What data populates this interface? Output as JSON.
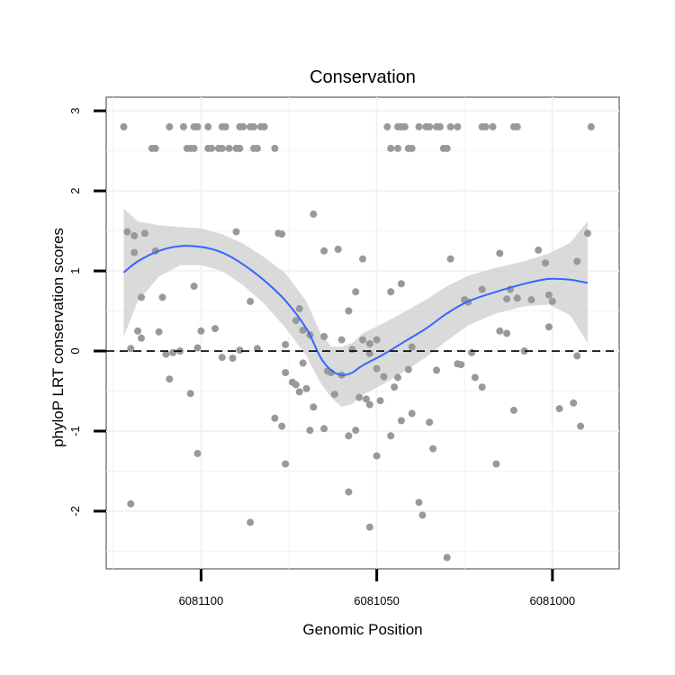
{
  "chart_data": {
    "type": "scatter",
    "title": "Conservation",
    "xlabel": "Genomic Position",
    "ylabel": "phyloP LRT conservation scores",
    "x_reversed": true,
    "xlim": [
      6081127,
      6080981
    ],
    "ylim": [
      -2.72,
      3.17
    ],
    "x_ticks": [
      6081100,
      6081050,
      6081000
    ],
    "x_tick_labels": [
      "6081100",
      "6081050",
      "6081000"
    ],
    "y_ticks": [
      -2,
      -1,
      0,
      1,
      2,
      3
    ],
    "y_tick_labels": [
      "-2",
      "-1",
      "0",
      "1",
      "2",
      "3"
    ],
    "grid": true,
    "reference_line": {
      "y": 0,
      "style": "dashed",
      "color": "#000000"
    },
    "colors": {
      "points": "#999999",
      "smooth": "#3366ff",
      "ribbon": "#d3d3d3",
      "panel_border": "#7f7f7f",
      "grid": "#f2f2f2"
    },
    "points": [
      [
        6081122,
        2.8
      ],
      [
        6081109,
        2.8
      ],
      [
        6081105,
        2.8
      ],
      [
        6081102,
        2.8
      ],
      [
        6081101,
        2.8
      ],
      [
        6081098,
        2.8
      ],
      [
        6081094,
        2.8
      ],
      [
        6081093,
        2.8
      ],
      [
        6081089,
        2.8
      ],
      [
        6081088,
        2.8
      ],
      [
        6081086,
        2.8
      ],
      [
        6081085,
        2.8
      ],
      [
        6081083,
        2.8
      ],
      [
        6081082,
        2.8
      ],
      [
        6081047,
        2.8
      ],
      [
        6081044,
        2.8
      ],
      [
        6081043,
        2.8
      ],
      [
        6081042,
        2.8
      ],
      [
        6081038,
        2.8
      ],
      [
        6081036,
        2.8
      ],
      [
        6081035,
        2.8
      ],
      [
        6081033,
        2.8
      ],
      [
        6081032,
        2.8
      ],
      [
        6081029,
        2.8
      ],
      [
        6081027,
        2.8
      ],
      [
        6081020,
        2.8
      ],
      [
        6081019,
        2.8
      ],
      [
        6081017,
        2.8
      ],
      [
        6081011,
        2.8
      ],
      [
        6081010,
        2.8
      ],
      [
        6080989,
        2.8
      ],
      [
        6081114,
        2.53
      ],
      [
        6081113,
        2.53
      ],
      [
        6081104,
        2.53
      ],
      [
        6081103,
        2.53
      ],
      [
        6081102,
        2.53
      ],
      [
        6081098,
        2.53
      ],
      [
        6081097,
        2.53
      ],
      [
        6081095,
        2.53
      ],
      [
        6081094,
        2.53
      ],
      [
        6081092,
        2.53
      ],
      [
        6081090,
        2.53
      ],
      [
        6081089,
        2.53
      ],
      [
        6081085,
        2.53
      ],
      [
        6081084,
        2.53
      ],
      [
        6081079,
        2.53
      ],
      [
        6081046,
        2.53
      ],
      [
        6081044,
        2.53
      ],
      [
        6081041,
        2.53
      ],
      [
        6081040,
        2.53
      ],
      [
        6081031,
        2.53
      ],
      [
        6081030,
        2.53
      ],
      [
        6081121,
        1.49
      ],
      [
        6081116,
        1.47
      ],
      [
        6081119,
        1.44
      ],
      [
        6081090,
        1.49
      ],
      [
        6081078,
        1.47
      ],
      [
        6081077,
        1.46
      ],
      [
        6081068,
        1.71
      ],
      [
        6081061,
        1.27
      ],
      [
        6081065,
        1.25
      ],
      [
        6081113,
        1.25
      ],
      [
        6081119,
        1.23
      ],
      [
        6081054,
        1.15
      ],
      [
        6081029,
        1.15
      ],
      [
        6081015,
        1.22
      ],
      [
        6081004,
        1.26
      ],
      [
        6080990,
        1.47
      ],
      [
        6081002,
        1.1
      ],
      [
        6080993,
        1.12
      ],
      [
        6081043,
        0.84
      ],
      [
        6081020,
        0.77
      ],
      [
        6081102,
        0.81
      ],
      [
        6081046,
        0.74
      ],
      [
        6081012,
        0.77
      ],
      [
        6081056,
        0.74
      ],
      [
        6081117,
        0.67
      ],
      [
        6081111,
        0.67
      ],
      [
        6081086,
        0.62
      ],
      [
        6081072,
        0.53
      ],
      [
        6081058,
        0.5
      ],
      [
        6081025,
        0.64
      ],
      [
        6081024,
        0.61
      ],
      [
        6081006,
        0.64
      ],
      [
        6081010,
        0.66
      ],
      [
        6081013,
        0.65
      ],
      [
        6081001,
        0.7
      ],
      [
        6081000,
        0.62
      ],
      [
        6081120,
        0.03
      ],
      [
        6081118,
        0.25
      ],
      [
        6081117,
        0.16
      ],
      [
        6081112,
        0.24
      ],
      [
        6081100,
        0.25
      ],
      [
        6081096,
        0.28
      ],
      [
        6081073,
        0.38
      ],
      [
        6081071,
        0.26
      ],
      [
        6081065,
        0.18
      ],
      [
        6081050,
        0.14
      ],
      [
        6081052,
        0.09
      ],
      [
        6081054,
        0.14
      ],
      [
        6081060,
        0.14
      ],
      [
        6081057,
        0.02
      ],
      [
        6081052,
        -0.03
      ],
      [
        6081040,
        0.05
      ],
      [
        6081023,
        -0.02
      ],
      [
        6081015,
        0.25
      ],
      [
        6081013,
        0.22
      ],
      [
        6081008,
        0.0
      ],
      [
        6081001,
        0.3
      ],
      [
        6080993,
        -0.06
      ],
      [
        6081076,
        0.08
      ],
      [
        6081110,
        -0.04
      ],
      [
        6081108,
        -0.02
      ],
      [
        6081106,
        0.0
      ],
      [
        6081101,
        0.04
      ],
      [
        6081094,
        -0.08
      ],
      [
        6081089,
        0.01
      ],
      [
        6081084,
        0.03
      ],
      [
        6081069,
        0.2
      ],
      [
        6081071,
        -0.15
      ],
      [
        6081064,
        -0.25
      ],
      [
        6081063,
        -0.27
      ],
      [
        6081060,
        -0.3
      ],
      [
        6081048,
        -0.32
      ],
      [
        6081044,
        -0.33
      ],
      [
        6081050,
        -0.22
      ],
      [
        6081026,
        -0.17
      ],
      [
        6081022,
        -0.33
      ],
      [
        6081033,
        -0.24
      ],
      [
        6081041,
        -0.23
      ],
      [
        6081027,
        -0.16
      ],
      [
        6081109,
        -0.35
      ],
      [
        6081076,
        -0.27
      ],
      [
        6081074,
        -0.39
      ],
      [
        6081072,
        -0.51
      ],
      [
        6081073,
        -0.42
      ],
      [
        6081070,
        -0.47
      ],
      [
        6081062,
        -0.54
      ],
      [
        6081068,
        -0.7
      ],
      [
        6081055,
        -0.58
      ],
      [
        6081053,
        -0.6
      ],
      [
        6081049,
        -0.62
      ],
      [
        6081052,
        -0.67
      ],
      [
        6081045,
        -0.45
      ],
      [
        6081077,
        -0.94
      ],
      [
        6081079,
        -0.84
      ],
      [
        6081069,
        -0.99
      ],
      [
        6081065,
        -0.97
      ],
      [
        6081058,
        -1.06
      ],
      [
        6081056,
        -0.99
      ],
      [
        6081050,
        -1.31
      ],
      [
        6081046,
        -1.06
      ],
      [
        6081043,
        -0.87
      ],
      [
        6081035,
        -0.89
      ],
      [
        6081034,
        -1.22
      ],
      [
        6081016,
        -1.41
      ],
      [
        6080994,
        -0.65
      ],
      [
        6080992,
        -0.94
      ],
      [
        6081020,
        -0.45
      ],
      [
        6081040,
        -0.78
      ],
      [
        6081011,
        -0.74
      ],
      [
        6080998,
        -0.72
      ],
      [
        6081103,
        -0.53
      ],
      [
        6081101,
        -1.28
      ],
      [
        6081091,
        -0.09
      ],
      [
        6081076,
        -1.41
      ],
      [
        6081058,
        -1.76
      ],
      [
        6081052,
        -2.2
      ],
      [
        6081038,
        -1.89
      ],
      [
        6081037,
        -2.05
      ],
      [
        6081030,
        -2.58
      ],
      [
        6081120,
        -1.91
      ],
      [
        6081086,
        -2.14
      ]
    ],
    "smooth_curve": [
      [
        6081122,
        0.98
      ],
      [
        6081118,
        1.12
      ],
      [
        6081112,
        1.25
      ],
      [
        6081106,
        1.31
      ],
      [
        6081100,
        1.3
      ],
      [
        6081094,
        1.23
      ],
      [
        6081088,
        1.08
      ],
      [
        6081082,
        0.88
      ],
      [
        6081076,
        0.63
      ],
      [
        6081070,
        0.28
      ],
      [
        6081066,
        -0.08
      ],
      [
        6081063,
        -0.24
      ],
      [
        6081060,
        -0.3
      ],
      [
        6081057,
        -0.27
      ],
      [
        6081054,
        -0.18
      ],
      [
        6081048,
        -0.04
      ],
      [
        6081042,
        0.12
      ],
      [
        6081036,
        0.28
      ],
      [
        6081030,
        0.47
      ],
      [
        6081024,
        0.62
      ],
      [
        6081016,
        0.74
      ],
      [
        6081008,
        0.84
      ],
      [
        6081001,
        0.9
      ],
      [
        6080995,
        0.89
      ],
      [
        6080990,
        0.85
      ]
    ],
    "ribbon_upper": [
      [
        6081122,
        1.78
      ],
      [
        6081118,
        1.62
      ],
      [
        6081112,
        1.57
      ],
      [
        6081106,
        1.55
      ],
      [
        6081100,
        1.53
      ],
      [
        6081094,
        1.46
      ],
      [
        6081088,
        1.34
      ],
      [
        6081082,
        1.17
      ],
      [
        6081076,
        0.97
      ],
      [
        6081070,
        0.62
      ],
      [
        6081066,
        0.22
      ],
      [
        6081063,
        0.06
      ],
      [
        6081060,
        0.05
      ],
      [
        6081057,
        0.1
      ],
      [
        6081054,
        0.22
      ],
      [
        6081048,
        0.35
      ],
      [
        6081042,
        0.49
      ],
      [
        6081036,
        0.64
      ],
      [
        6081030,
        0.81
      ],
      [
        6081024,
        0.94
      ],
      [
        6081016,
        1.04
      ],
      [
        6081008,
        1.12
      ],
      [
        6081001,
        1.22
      ],
      [
        6080995,
        1.35
      ],
      [
        6080990,
        1.62
      ]
    ],
    "ribbon_lower": [
      [
        6081122,
        0.18
      ],
      [
        6081118,
        0.62
      ],
      [
        6081112,
        0.93
      ],
      [
        6081106,
        1.07
      ],
      [
        6081100,
        1.07
      ],
      [
        6081094,
        1.0
      ],
      [
        6081088,
        0.82
      ],
      [
        6081082,
        0.59
      ],
      [
        6081076,
        0.29
      ],
      [
        6081070,
        -0.06
      ],
      [
        6081066,
        -0.4
      ],
      [
        6081063,
        -0.58
      ],
      [
        6081060,
        -0.7
      ],
      [
        6081057,
        -0.66
      ],
      [
        6081054,
        -0.55
      ],
      [
        6081048,
        -0.41
      ],
      [
        6081042,
        -0.25
      ],
      [
        6081036,
        -0.08
      ],
      [
        6081030,
        0.13
      ],
      [
        6081024,
        0.32
      ],
      [
        6081016,
        0.47
      ],
      [
        6081008,
        0.56
      ],
      [
        6081001,
        0.58
      ],
      [
        6080995,
        0.45
      ],
      [
        6080990,
        0.1
      ]
    ]
  }
}
